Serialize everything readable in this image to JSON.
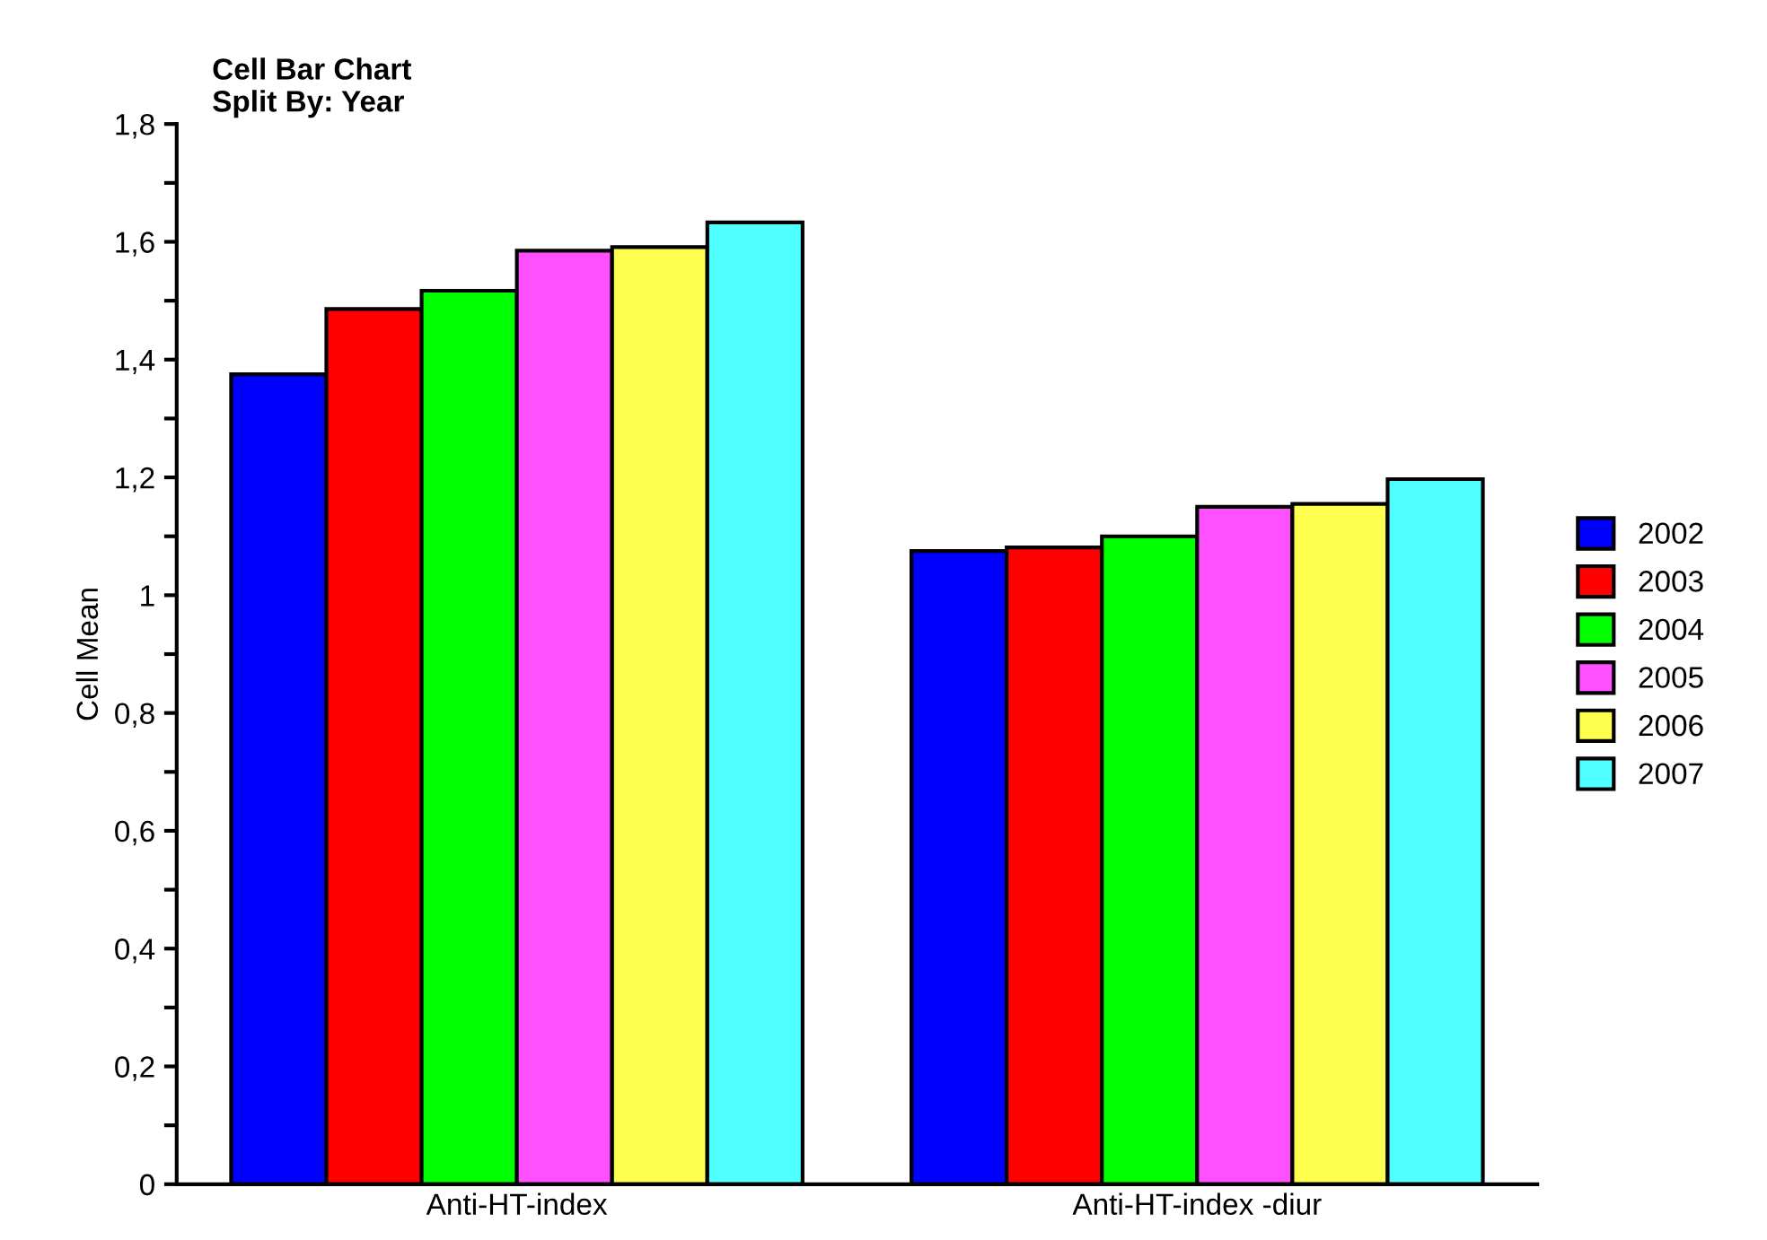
{
  "chart_data": {
    "type": "bar",
    "title": "Cell Bar Chart\nSplit By: Year",
    "ylabel": "Cell Mean",
    "categories": [
      "Anti-HT-index",
      "Anti-HT-index -diur"
    ],
    "series": [
      {
        "name": "2002",
        "color": "#0000ff",
        "values": [
          1.375,
          1.075
        ]
      },
      {
        "name": "2003",
        "color": "#ff0000",
        "values": [
          1.486,
          1.081
        ]
      },
      {
        "name": "2004",
        "color": "#00ff00",
        "values": [
          1.517,
          1.1
        ]
      },
      {
        "name": "2005",
        "color": "#ff50ff",
        "values": [
          1.585,
          1.15
        ]
      },
      {
        "name": "2006",
        "color": "#ffff50",
        "values": [
          1.591,
          1.155
        ]
      },
      {
        "name": "2007",
        "color": "#50ffff",
        "values": [
          1.633,
          1.197
        ]
      }
    ],
    "ylim": [
      0,
      1.8
    ],
    "yticks": [
      {
        "value": 0,
        "label": "0"
      },
      {
        "value": 0.1,
        "label": null
      },
      {
        "value": 0.2,
        "label": "0,2"
      },
      {
        "value": 0.3,
        "label": null
      },
      {
        "value": 0.4,
        "label": "0,4"
      },
      {
        "value": 0.5,
        "label": null
      },
      {
        "value": 0.6,
        "label": "0,6"
      },
      {
        "value": 0.7,
        "label": null
      },
      {
        "value": 0.8,
        "label": "0,8"
      },
      {
        "value": 0.9,
        "label": null
      },
      {
        "value": 1,
        "label": "1"
      },
      {
        "value": 1.1,
        "label": null
      },
      {
        "value": 1.2,
        "label": "1,2"
      },
      {
        "value": 1.3,
        "label": null
      },
      {
        "value": 1.4,
        "label": "1,4"
      },
      {
        "value": 1.5,
        "label": null
      },
      {
        "value": 1.6,
        "label": "1,6"
      },
      {
        "value": 1.7,
        "label": null
      },
      {
        "value": 1.8,
        "label": "1,8"
      }
    ],
    "grid": false,
    "legend": "right"
  }
}
